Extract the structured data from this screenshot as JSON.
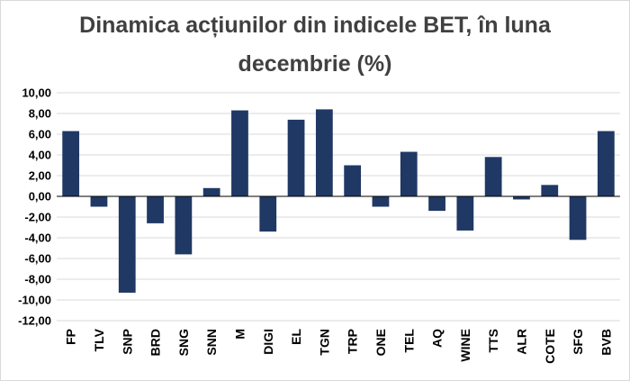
{
  "chart_data": {
    "type": "bar",
    "title": "Dinamica acțiunilor din indicele BET, în luna decembrie (%)",
    "title_lines": [
      "Dinamica acțiunilor din indicele BET, în luna",
      "decembrie (%)"
    ],
    "categories": [
      "FP",
      "TLV",
      "SNP",
      "BRD",
      "SNG",
      "SNN",
      "M",
      "DIGI",
      "EL",
      "TGN",
      "TRP",
      "ONE",
      "TEL",
      "AQ",
      "WINE",
      "TTS",
      "ALR",
      "COTE",
      "SFG",
      "BVB"
    ],
    "values": [
      6.3,
      -1.0,
      -9.3,
      -2.6,
      -5.6,
      0.8,
      8.3,
      -3.4,
      7.4,
      8.4,
      3.0,
      -1.0,
      4.3,
      -1.4,
      -3.3,
      3.8,
      -0.3,
      1.1,
      -4.2,
      6.3
    ],
    "ylim": [
      -12,
      10
    ],
    "y_ticks": [
      -12,
      -10,
      -8,
      -6,
      -4,
      -2,
      0,
      2,
      4,
      6,
      8,
      10
    ],
    "y_tick_labels": [
      "-12,00",
      "-10,00",
      "-8,00",
      "-6,00",
      "-4,00",
      "-2,00",
      "0,00",
      "2,00",
      "4,00",
      "6,00",
      "8,00",
      "10,00"
    ],
    "xlabel": "",
    "ylabel": "",
    "grid": true,
    "legend": "none",
    "bar_color": "#203864",
    "grid_color": "#d9d9d9",
    "axis_color": "#000000"
  }
}
